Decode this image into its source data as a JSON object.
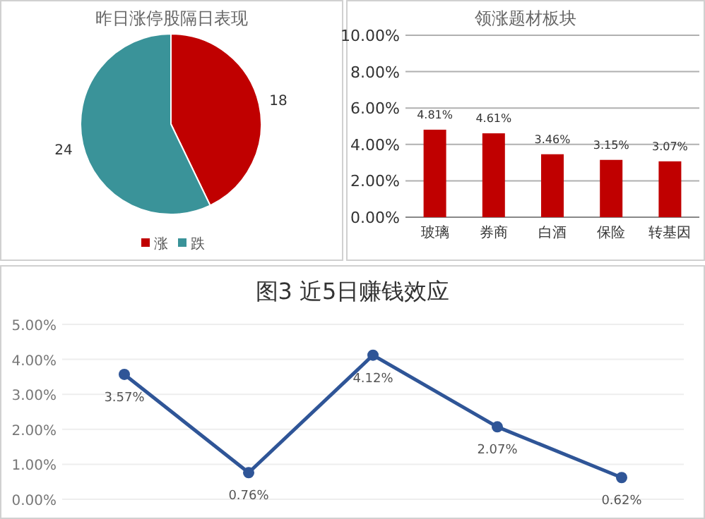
{
  "chart_data": [
    {
      "type": "pie",
      "title": "昨日涨停股隔日表现",
      "categories": [
        "涨",
        "跌"
      ],
      "values": [
        18,
        24
      ],
      "colors": [
        "#c00000",
        "#3a9399"
      ],
      "data_labels": true,
      "legend": "bottom"
    },
    {
      "type": "bar",
      "title": "领涨题材板块",
      "categories": [
        "玻璃",
        "券商",
        "白酒",
        "保险",
        "转基因"
      ],
      "values": [
        4.81,
        4.61,
        3.46,
        3.15,
        3.07
      ],
      "color": "#c00000",
      "value_labels": [
        "4.81%",
        "4.61%",
        "3.46%",
        "3.15%",
        "3.07%"
      ],
      "ylim": [
        0,
        10
      ],
      "yticks": [
        {
          "value": 0,
          "label": "0.00%"
        },
        {
          "value": 2,
          "label": "2.00%"
        },
        {
          "value": 4,
          "label": "4.00%"
        },
        {
          "value": 6,
          "label": "6.00%"
        },
        {
          "value": 8,
          "label": "8.00%"
        },
        {
          "value": 10,
          "label": "10.00%"
        }
      ],
      "grid": "y"
    },
    {
      "type": "line",
      "title": "图3 近5日赚钱效应",
      "categories": [
        null,
        null,
        null,
        null,
        null
      ],
      "values": [
        3.57,
        0.76,
        4.12,
        2.07,
        0.62
      ],
      "color": "#2f5597",
      "marker": "circle",
      "value_labels": [
        "3.57%",
        "0.76%",
        "4.12%",
        "2.07%",
        "0.62%"
      ],
      "ylim": [
        0,
        5
      ],
      "yticks": [
        {
          "value": 0,
          "label": "0.00%"
        },
        {
          "value": 1,
          "label": "1.00%"
        },
        {
          "value": 2,
          "label": "2.00%"
        },
        {
          "value": 3,
          "label": "3.00%"
        },
        {
          "value": 4,
          "label": "4.00%"
        },
        {
          "value": 5,
          "label": "5.00%"
        }
      ],
      "grid": "y"
    }
  ]
}
